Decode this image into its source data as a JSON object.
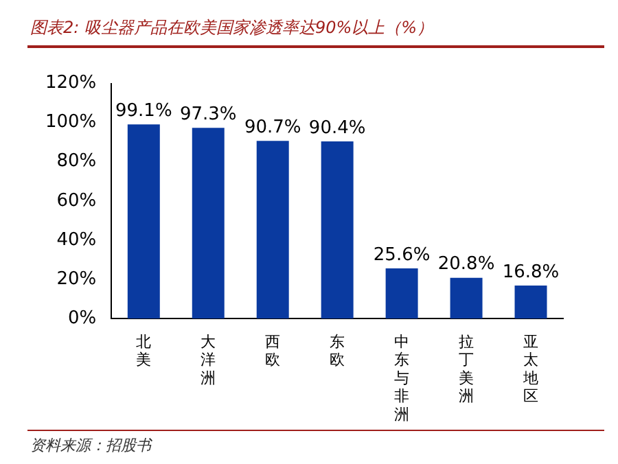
{
  "chart_data": {
    "type": "bar",
    "title": "图表2: 吸尘器产品在欧美国家渗透率达90%以上（%）",
    "categories": [
      "北美",
      "大洋洲",
      "西欧",
      "东欧",
      "中东与非洲",
      "拉丁美洲",
      "亚太地区"
    ],
    "values": [
      99.1,
      97.3,
      90.7,
      90.4,
      25.6,
      20.8,
      16.8
    ],
    "value_labels": [
      "99.1%",
      "97.3%",
      "90.7%",
      "90.4%",
      "25.6%",
      "20.8%",
      "16.8%"
    ],
    "color": "#0a3aa0",
    "ylim": [
      0,
      120
    ],
    "yticks": [
      {
        "value": 0,
        "label": "0%"
      },
      {
        "value": 20,
        "label": "20%"
      },
      {
        "value": 40,
        "label": "40%"
      },
      {
        "value": 60,
        "label": "60%"
      },
      {
        "value": 80,
        "label": "80%"
      },
      {
        "value": 100,
        "label": "100%"
      },
      {
        "value": 120,
        "label": "120%"
      }
    ],
    "grid": false,
    "legend": false,
    "annotations": [
      "资料来源：招股书"
    ]
  }
}
